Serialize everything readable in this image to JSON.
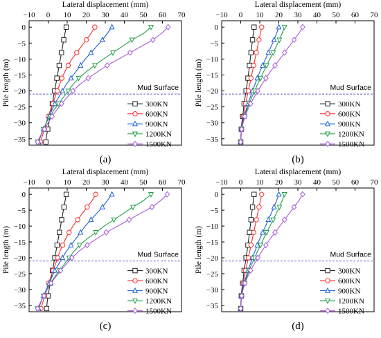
{
  "figure": {
    "legend_title": "Mud Surface",
    "series_styles": [
      {
        "name": "300KN",
        "color": "#222222",
        "marker": "square"
      },
      {
        "name": "600KN",
        "color": "#ff2a2a",
        "marker": "circle"
      },
      {
        "name": "900KN",
        "color": "#1f5fd6",
        "marker": "triangle-up"
      },
      {
        "name": "1200KN",
        "color": "#22a047",
        "marker": "triangle-down"
      },
      {
        "name": "1500KN",
        "color": "#a85ad8",
        "marker": "diamond"
      }
    ],
    "mud_line_color": "#6a5acd"
  },
  "chart_data": [
    {
      "type": "line",
      "panel_label": "(a)",
      "xlabel": "Lateral displacement (mm)",
      "ylabel": "Pile length (m)",
      "xlim": [
        -10,
        70
      ],
      "ylim": [
        -37,
        2
      ],
      "xticks": [
        "−10",
        "0",
        "10",
        "20",
        "30",
        "40",
        "50",
        "60",
        "70"
      ],
      "yticks": [
        "0",
        "−5",
        "−10",
        "−15",
        "−20",
        "−25",
        "−30",
        "−35"
      ],
      "mud_surface_y": -21,
      "legend": [
        "300KN",
        "600KN",
        "900KN",
        "1200KN",
        "1500KN"
      ],
      "y": [
        0,
        -2,
        -4,
        -6,
        -8,
        -10,
        -12,
        -14,
        -16,
        -18,
        -20,
        -22,
        -24,
        -26,
        -28,
        -30,
        -32,
        -34,
        -36
      ],
      "series": [
        {
          "name": "300KN",
          "x": [
            9.5,
            8.8,
            8.2,
            7.6,
            7.0,
            6.4,
            5.8,
            5.2,
            4.6,
            4.0,
            3.4,
            2.8,
            2.2,
            1.6,
            1.0,
            0.4,
            -0.2,
            -0.8,
            -1.2
          ]
        },
        {
          "name": "600KN",
          "x": [
            24.5,
            22.5,
            20.0,
            17.5,
            15.0,
            12.5,
            10.5,
            8.8,
            7.2,
            6.0,
            4.8,
            3.6,
            2.4,
            1.2,
            0.0,
            -1.0,
            -2.0,
            -3.0,
            -4.0
          ]
        },
        {
          "name": "900KN",
          "x": [
            33.5,
            31.0,
            28.5,
            25.5,
            22.5,
            19.5,
            17.0,
            14.5,
            12.0,
            9.5,
            7.5,
            5.5,
            3.5,
            2.0,
            0.5,
            -1.0,
            -2.5,
            -3.8,
            -5.0
          ]
        },
        {
          "name": "1200KN",
          "x": [
            54.0,
            50.0,
            44.0,
            39.0,
            34.0,
            29.0,
            24.5,
            20.0,
            16.0,
            13.0,
            10.5,
            8.0,
            5.5,
            3.0,
            1.0,
            -1.0,
            -2.5,
            -4.0,
            -5.5
          ]
        },
        {
          "name": "1500KN",
          "x": [
            63.0,
            59.5,
            55.0,
            49.0,
            43.0,
            37.0,
            31.0,
            26.0,
            21.0,
            16.5,
            13.0,
            10.0,
            7.0,
            4.5,
            2.0,
            0.0,
            -2.0,
            -4.0,
            -5.5
          ]
        }
      ]
    },
    {
      "type": "line",
      "panel_label": "(b)",
      "xlabel": "Lateral displacement (mm)",
      "ylabel": "Pile length (m)",
      "xlim": [
        -10,
        70
      ],
      "ylim": [
        -37,
        2
      ],
      "xticks": [
        "−10",
        "0",
        "10",
        "20",
        "30",
        "40",
        "50",
        "60",
        "70"
      ],
      "yticks": [
        "0",
        "−5",
        "−10",
        "−15",
        "−20",
        "−25",
        "−30",
        "−35"
      ],
      "mud_surface_y": -21,
      "legend": [
        "300KN",
        "600KN",
        "900KN",
        "1200KN",
        "1500KN"
      ],
      "y": [
        0,
        -2,
        -4,
        -6,
        -8,
        -10,
        -12,
        -14,
        -16,
        -18,
        -20,
        -22,
        -24,
        -26,
        -28,
        -30,
        -32,
        -34,
        -36
      ],
      "series": [
        {
          "name": "300KN",
          "x": [
            7.0,
            6.6,
            6.2,
            5.8,
            5.4,
            5.0,
            4.6,
            4.2,
            3.8,
            3.3,
            2.8,
            2.3,
            1.8,
            1.4,
            1.0,
            0.6,
            0.3,
            0.1,
            0.0
          ]
        },
        {
          "name": "600KN",
          "x": [
            11.0,
            10.3,
            9.6,
            8.9,
            8.2,
            7.5,
            6.8,
            6.1,
            5.4,
            4.7,
            4.0,
            3.3,
            2.6,
            2.0,
            1.4,
            0.9,
            0.5,
            0.2,
            0.0
          ]
        },
        {
          "name": "900KN",
          "x": [
            20.0,
            18.8,
            17.5,
            16.0,
            14.5,
            13.0,
            11.5,
            10.0,
            8.7,
            7.4,
            6.2,
            5.0,
            3.8,
            2.8,
            1.8,
            1.0,
            0.4,
            0.1,
            0.0
          ]
        },
        {
          "name": "1200KN",
          "x": [
            23.0,
            21.7,
            20.3,
            18.7,
            17.0,
            15.3,
            13.6,
            12.0,
            10.4,
            8.8,
            7.3,
            5.8,
            4.4,
            3.2,
            2.1,
            1.2,
            0.5,
            0.1,
            0.0
          ]
        },
        {
          "name": "1500KN",
          "x": [
            32.5,
            30.5,
            28.0,
            25.5,
            23.0,
            20.5,
            18.0,
            15.5,
            13.2,
            11.0,
            9.0,
            7.0,
            5.2,
            3.6,
            2.2,
            1.2,
            0.5,
            0.1,
            0.0
          ]
        }
      ]
    },
    {
      "type": "line",
      "panel_label": "(c)",
      "xlabel": "Lateral displacement (mm)",
      "ylabel": "Pile length (m)",
      "xlim": [
        -10,
        70
      ],
      "ylim": [
        -37,
        2
      ],
      "xticks": [
        "−10",
        "0",
        "10",
        "20",
        "30",
        "40",
        "50",
        "60",
        "70"
      ],
      "yticks": [
        "0",
        "−5",
        "−10",
        "−15",
        "−20",
        "−25",
        "−30",
        "−35"
      ],
      "mud_surface_y": -21,
      "legend": [
        "300KN",
        "600KN",
        "900KN",
        "1200KN",
        "1500KN"
      ],
      "y": [
        0,
        -2,
        -4,
        -6,
        -8,
        -10,
        -12,
        -14,
        -16,
        -18,
        -20,
        -22,
        -24,
        -26,
        -28,
        -30,
        -32,
        -34,
        -36
      ],
      "series": [
        {
          "name": "300KN",
          "x": [
            9.5,
            8.9,
            8.3,
            7.7,
            7.1,
            6.5,
            5.9,
            5.3,
            4.7,
            4.1,
            3.5,
            2.9,
            2.3,
            1.7,
            1.1,
            0.5,
            0.0,
            -0.5,
            -0.8
          ]
        },
        {
          "name": "600KN",
          "x": [
            25.0,
            23.0,
            20.5,
            18.0,
            15.5,
            13.0,
            11.0,
            9.2,
            7.6,
            6.2,
            5.0,
            3.8,
            2.6,
            1.4,
            0.2,
            -0.8,
            -1.8,
            -2.8,
            -3.8
          ]
        },
        {
          "name": "900KN",
          "x": [
            33.5,
            31.0,
            28.5,
            25.5,
            22.5,
            19.5,
            17.0,
            14.5,
            12.0,
            9.5,
            7.5,
            5.5,
            3.5,
            2.0,
            0.5,
            -1.0,
            -2.5,
            -3.8,
            -5.0
          ]
        },
        {
          "name": "1200KN",
          "x": [
            54.0,
            50.0,
            44.5,
            39.5,
            34.5,
            29.5,
            25.0,
            20.5,
            16.5,
            13.5,
            11.0,
            8.5,
            6.0,
            3.5,
            1.2,
            -0.8,
            -2.5,
            -4.0,
            -5.5
          ]
        },
        {
          "name": "1500KN",
          "x": [
            62.5,
            59.0,
            54.5,
            48.5,
            42.5,
            36.5,
            30.5,
            25.5,
            20.5,
            16.0,
            12.5,
            9.5,
            6.5,
            4.0,
            1.5,
            -0.5,
            -2.2,
            -4.0,
            -5.5
          ]
        }
      ]
    },
    {
      "type": "line",
      "panel_label": "(d)",
      "xlabel": "Lateral displacement (mm)",
      "ylabel": "Pile length (m)",
      "xlim": [
        -10,
        70
      ],
      "ylim": [
        -37,
        2
      ],
      "xticks": [
        "−10",
        "0",
        "10",
        "20",
        "30",
        "40",
        "50",
        "60",
        "70"
      ],
      "yticks": [
        "0",
        "−5",
        "−10",
        "−15",
        "−20",
        "−25",
        "−30",
        "−35"
      ],
      "mud_surface_y": -21,
      "legend": [
        "300KN",
        "600KN",
        "900KN",
        "1200KN",
        "1500KN"
      ],
      "y": [
        0,
        -2,
        -4,
        -6,
        -8,
        -10,
        -12,
        -14,
        -16,
        -18,
        -20,
        -22,
        -24,
        -26,
        -28,
        -30,
        -32,
        -34,
        -36
      ],
      "series": [
        {
          "name": "300KN",
          "x": [
            7.0,
            6.6,
            6.2,
            5.8,
            5.4,
            5.0,
            4.6,
            4.2,
            3.8,
            3.3,
            2.8,
            2.3,
            1.8,
            1.4,
            1.0,
            0.6,
            0.3,
            0.1,
            0.0
          ]
        },
        {
          "name": "600KN",
          "x": [
            11.0,
            10.3,
            9.6,
            8.9,
            8.2,
            7.5,
            6.8,
            6.1,
            5.4,
            4.7,
            4.0,
            3.3,
            2.6,
            2.0,
            1.4,
            0.9,
            0.5,
            0.2,
            0.0
          ]
        },
        {
          "name": "900KN",
          "x": [
            20.0,
            18.8,
            17.5,
            16.0,
            14.5,
            13.0,
            11.5,
            10.0,
            8.7,
            7.4,
            6.2,
            5.0,
            3.8,
            2.8,
            1.8,
            1.0,
            0.4,
            0.1,
            0.0
          ]
        },
        {
          "name": "1200KN",
          "x": [
            23.0,
            21.7,
            20.3,
            18.7,
            17.0,
            15.3,
            13.6,
            12.0,
            10.4,
            8.8,
            7.3,
            5.8,
            4.4,
            3.2,
            2.1,
            1.2,
            0.5,
            0.1,
            0.0
          ]
        },
        {
          "name": "1500KN",
          "x": [
            32.5,
            30.5,
            28.0,
            25.5,
            23.0,
            20.5,
            18.0,
            15.5,
            13.2,
            11.0,
            9.0,
            7.0,
            5.2,
            3.6,
            2.2,
            1.2,
            0.5,
            0.1,
            0.0
          ]
        }
      ]
    }
  ]
}
